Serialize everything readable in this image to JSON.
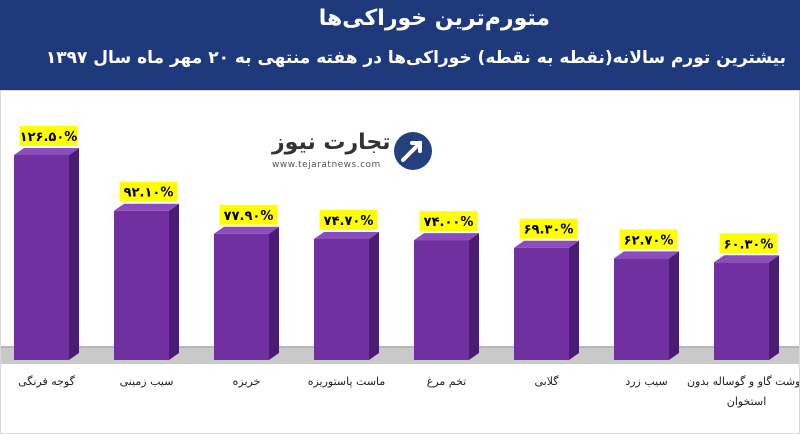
{
  "header": {
    "title": "متورم‌ترین خوراکی‌ها",
    "subtitle": "بیشترین تورم سالانه(نقطه به نقطه) خوراکی‌ها در هفته منتهی به ۲۰ مهر ماه سال ۱۳۹۷"
  },
  "logo": {
    "name": "تجارت نیوز",
    "url": "www.tejaratnews.com"
  },
  "colors": {
    "header_bg": "#1f3a7c",
    "bar": "#7030a0",
    "label_bg": "#ffff00"
  },
  "chart_data": {
    "type": "bar",
    "categories": [
      "گوجه فرنگی",
      "سیب زمینی",
      "خربزه",
      "ماست پاستوریزه",
      "تخم مرغ",
      "گلابی",
      "سیب زرد",
      "گوشت گاو و گوساله بدون استخوان"
    ],
    "values": [
      126.5,
      92.1,
      77.9,
      74.7,
      74.0,
      69.3,
      62.7,
      60.3
    ],
    "value_labels": [
      "۱۲۶.۵۰%",
      "۹۲.۱۰%",
      "۷۷.۹۰%",
      "۷۴.۷۰%",
      "۷۴.۰۰%",
      "۶۹.۳۰%",
      "۶۲.۷۰%",
      "۶۰.۳۰%"
    ],
    "ylim": [
      0,
      130
    ],
    "grid": false,
    "legend": "none"
  }
}
